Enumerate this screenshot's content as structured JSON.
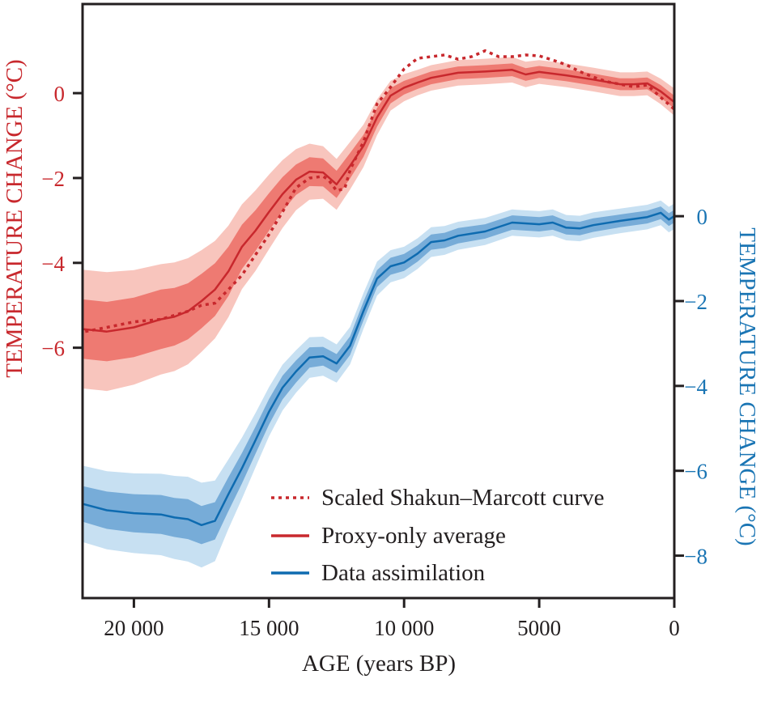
{
  "chart_data": {
    "type": "line",
    "title": "",
    "xlabel": "AGE (years BP)",
    "ylabel_left": "TEMPERATURE CHANGE (°C)",
    "ylabel_right": "TEMPERATURE CHANGE (°C)",
    "x_reversed": true,
    "xlim": [
      21900,
      0
    ],
    "ylim_left": [
      -11.9,
      2.1
    ],
    "ylim_right": [
      -9.0,
      5.0
    ],
    "grid": false,
    "x_ticks": [
      20000,
      15000,
      10000,
      5000,
      0
    ],
    "x_tick_labels": [
      "20 000",
      "15 000",
      "10 000",
      "5000",
      "0"
    ],
    "y_ticks_left": [
      0,
      -2,
      -4,
      -6
    ],
    "y_tick_labels_left": [
      "0",
      "−2",
      "−4",
      "−6"
    ],
    "y_ticks_right": [
      0,
      -2,
      -4,
      -6,
      -8
    ],
    "y_tick_labels_right": [
      "0",
      "−2",
      "−4",
      "−6",
      "−8"
    ],
    "legend_position": "bottom-right",
    "colors": {
      "red_axis": "#c8282d",
      "blue_axis": "#1a75b4",
      "red_line": "#c8282d",
      "red_inner_band": "#ee7a72",
      "red_outer_band": "#f8c5bd",
      "blue_line": "#0e6bb0",
      "blue_inner_band": "#77acd8",
      "blue_outer_band": "#c7e0f2",
      "frame": "#231f20"
    },
    "series": [
      {
        "name": "Scaled Shakun–Marcott curve",
        "axis": "left",
        "style": "dotted",
        "color": "#c8282d",
        "x": [
          21800,
          21000,
          20000,
          19000,
          18000,
          17500,
          17000,
          16500,
          16000,
          15500,
          15000,
          14500,
          14000,
          13500,
          13000,
          12800,
          12500,
          12200,
          12000,
          11500,
          11000,
          10600,
          10000,
          9500,
          9000,
          8500,
          8000,
          7500,
          7000,
          6500,
          6000,
          5500,
          5000,
          4500,
          4000,
          3500,
          3000,
          2500,
          2000,
          1500,
          1000,
          500,
          0
        ],
        "y": [
          -5.62,
          -5.52,
          -5.39,
          -5.33,
          -5.14,
          -5.0,
          -4.95,
          -4.63,
          -4.29,
          -3.81,
          -3.33,
          -2.8,
          -2.23,
          -2.0,
          -1.96,
          -2.04,
          -2.3,
          -2.25,
          -1.81,
          -1.14,
          -0.25,
          0.06,
          0.57,
          0.82,
          0.86,
          0.9,
          0.8,
          0.86,
          1.0,
          0.86,
          0.86,
          0.9,
          0.88,
          0.78,
          0.67,
          0.51,
          0.38,
          0.27,
          0.21,
          0.15,
          0.19,
          -0.1,
          -0.38
        ]
      },
      {
        "name": "Proxy-only average",
        "axis": "left",
        "style": "solid",
        "color": "#c8282d",
        "x": [
          21900,
          21000,
          20000,
          19000,
          18500,
          18000,
          17500,
          17000,
          16500,
          16000,
          15500,
          15000,
          14500,
          14000,
          13500,
          13000,
          12500,
          12000,
          11500,
          11000,
          10500,
          10000,
          9500,
          9000,
          8000,
          7000,
          6000,
          5500,
          5000,
          4000,
          3000,
          2000,
          1500,
          1000,
          500,
          0
        ],
        "y": [
          -5.56,
          -5.62,
          -5.52,
          -5.33,
          -5.27,
          -5.14,
          -4.9,
          -4.63,
          -4.2,
          -3.62,
          -3.24,
          -2.8,
          -2.38,
          -2.04,
          -1.85,
          -1.87,
          -2.15,
          -1.71,
          -1.24,
          -0.57,
          -0.06,
          0.13,
          0.25,
          0.36,
          0.48,
          0.51,
          0.55,
          0.44,
          0.5,
          0.42,
          0.32,
          0.21,
          0.21,
          0.23,
          0.04,
          -0.21
        ],
        "band_inner_halfwidth": [
          0.7,
          0.7,
          0.7,
          0.7,
          0.68,
          0.66,
          0.64,
          0.62,
          0.58,
          0.52,
          0.48,
          0.44,
          0.4,
          0.36,
          0.34,
          0.33,
          0.32,
          0.3,
          0.26,
          0.22,
          0.18,
          0.16,
          0.15,
          0.15,
          0.15,
          0.15,
          0.15,
          0.15,
          0.14,
          0.14,
          0.14,
          0.14,
          0.14,
          0.14,
          0.15,
          0.15
        ],
        "band_outer_halfwidth": [
          1.4,
          1.4,
          1.35,
          1.3,
          1.28,
          1.25,
          1.2,
          1.15,
          1.08,
          1.0,
          0.95,
          0.88,
          0.8,
          0.72,
          0.66,
          0.62,
          0.6,
          0.56,
          0.5,
          0.42,
          0.35,
          0.32,
          0.3,
          0.3,
          0.3,
          0.3,
          0.3,
          0.3,
          0.28,
          0.28,
          0.28,
          0.28,
          0.28,
          0.28,
          0.3,
          0.32
        ]
      },
      {
        "name": "Data assimilation",
        "axis": "right",
        "style": "solid",
        "color": "#0e6bb0",
        "x": [
          21900,
          21000,
          20000,
          19000,
          18500,
          18000,
          17500,
          17000,
          16500,
          16000,
          15500,
          15000,
          14500,
          14000,
          13500,
          13000,
          12500,
          12000,
          11500,
          11000,
          10500,
          10000,
          9500,
          9000,
          8500,
          8000,
          7000,
          6000,
          5000,
          4500,
          4000,
          3500,
          3000,
          2000,
          1000,
          500,
          200,
          0
        ],
        "y": [
          -6.78,
          -6.93,
          -7.0,
          -7.03,
          -7.1,
          -7.14,
          -7.28,
          -7.18,
          -6.55,
          -5.94,
          -5.28,
          -4.61,
          -4.04,
          -3.66,
          -3.33,
          -3.3,
          -3.47,
          -3.05,
          -2.23,
          -1.47,
          -1.18,
          -1.09,
          -0.88,
          -0.61,
          -0.57,
          -0.46,
          -0.36,
          -0.15,
          -0.19,
          -0.15,
          -0.27,
          -0.29,
          -0.21,
          -0.11,
          -0.02,
          0.08,
          -0.08,
          0.0
        ],
        "band_inner_halfwidth": [
          0.42,
          0.44,
          0.45,
          0.46,
          0.46,
          0.47,
          0.45,
          0.44,
          0.4,
          0.36,
          0.32,
          0.3,
          0.28,
          0.26,
          0.24,
          0.22,
          0.22,
          0.22,
          0.22,
          0.2,
          0.2,
          0.2,
          0.19,
          0.18,
          0.18,
          0.18,
          0.17,
          0.17,
          0.17,
          0.17,
          0.16,
          0.16,
          0.16,
          0.15,
          0.15,
          0.15,
          0.15,
          0.15
        ],
        "band_outer_halfwidth": [
          0.9,
          0.92,
          0.94,
          0.96,
          0.98,
          1.0,
          1.0,
          0.95,
          0.82,
          0.72,
          0.64,
          0.58,
          0.54,
          0.5,
          0.48,
          0.46,
          0.45,
          0.44,
          0.42,
          0.4,
          0.38,
          0.37,
          0.36,
          0.35,
          0.34,
          0.33,
          0.32,
          0.31,
          0.31,
          0.31,
          0.3,
          0.3,
          0.3,
          0.29,
          0.29,
          0.29,
          0.3,
          0.3
        ]
      }
    ]
  }
}
